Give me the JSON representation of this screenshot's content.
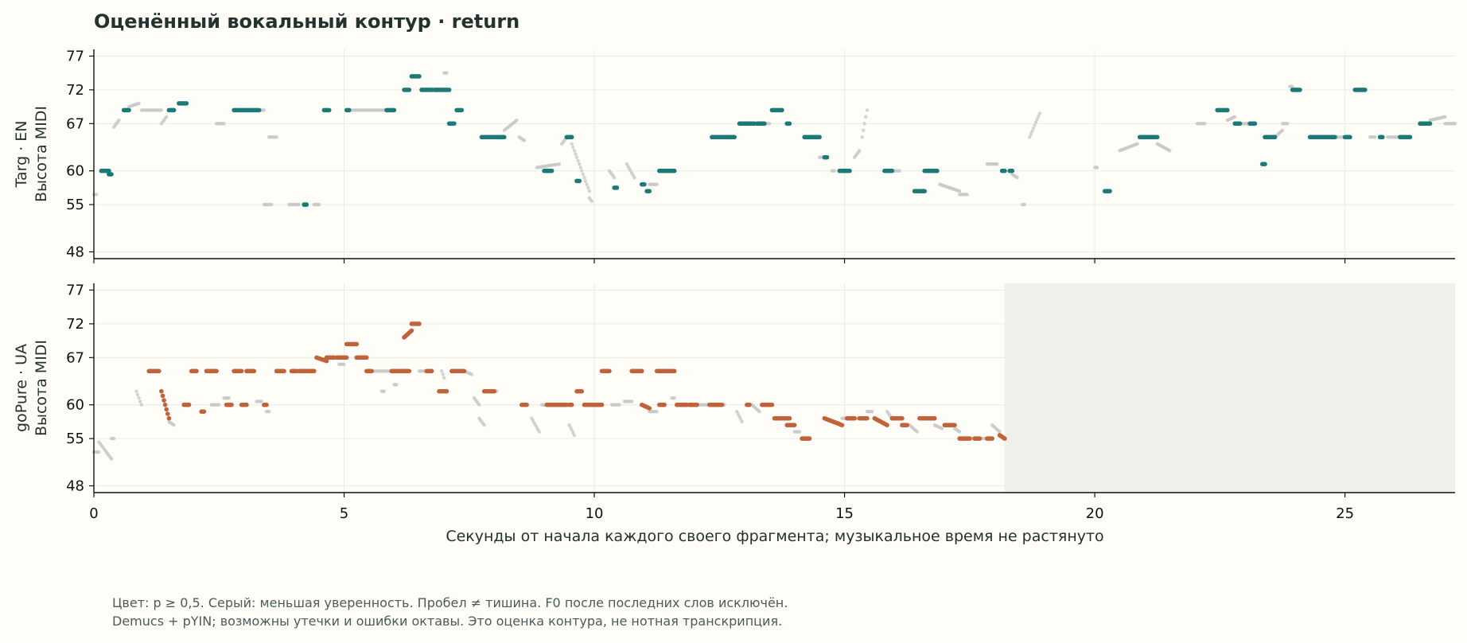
{
  "chart_data": {
    "type": "scatter",
    "title": "Оценённый вокальный контур · return",
    "xlabel": "Секунды от начала каждого своего фрагмента; музыкальное время не растянуто",
    "xlim": [
      0,
      27.2
    ],
    "xticks": [
      0,
      5,
      10,
      15,
      20,
      25
    ],
    "yticks": [
      48,
      55,
      60,
      67,
      72,
      77
    ],
    "footnotes": [
      "Цвет: p ≥ 0,5. Серый: меньшая уверенность. Пробел ≠ тишина. F0 после последних слов исключён.",
      "Demucs + pYIN; возможны утечки и ошибки октавы. Это оценка контура, не нотная транскрипция."
    ],
    "grid": true,
    "colors": {
      "confident_top": "#1b7a78",
      "confident_bottom": "#c0623a",
      "low_confidence": "#c8c8c8",
      "excluded_region": "#efefeb"
    },
    "panels": [
      {
        "name": "Targ · EN",
        "ylabel": "Высота MIDI",
        "ylim": [
          47,
          78
        ],
        "confident_segments": [
          [
            0.15,
            0.3,
            60,
            60
          ],
          [
            0.3,
            0.35,
            59.5,
            59.5
          ],
          [
            0.6,
            0.7,
            69,
            69
          ],
          [
            2.8,
            3.3,
            69,
            69
          ],
          [
            1.5,
            1.6,
            69,
            69
          ],
          [
            1.7,
            1.85,
            70,
            70
          ],
          [
            4.2,
            4.25,
            55,
            55
          ],
          [
            4.6,
            4.7,
            69,
            69
          ],
          [
            5.05,
            5.1,
            69,
            69
          ],
          [
            5.85,
            6.0,
            69,
            69
          ],
          [
            6.2,
            6.3,
            72,
            72
          ],
          [
            6.35,
            6.5,
            74,
            74
          ],
          [
            6.55,
            6.75,
            72,
            72
          ],
          [
            6.8,
            7.1,
            72,
            72
          ],
          [
            7.1,
            7.2,
            67,
            67
          ],
          [
            7.25,
            7.35,
            69,
            69
          ],
          [
            7.75,
            8.1,
            65,
            65
          ],
          [
            8.1,
            8.2,
            65,
            65
          ],
          [
            9.0,
            9.15,
            60,
            60
          ],
          [
            9.45,
            9.55,
            65,
            65
          ],
          [
            9.65,
            9.7,
            58.5,
            58.5
          ],
          [
            10.4,
            10.45,
            57.5,
            57.5
          ],
          [
            10.95,
            11.0,
            58,
            58
          ],
          [
            11.05,
            11.1,
            57,
            57
          ],
          [
            11.3,
            11.6,
            60,
            60
          ],
          [
            12.35,
            12.8,
            65,
            65
          ],
          [
            12.9,
            13.2,
            67,
            67
          ],
          [
            13.25,
            13.4,
            67,
            67
          ],
          [
            13.55,
            13.75,
            69,
            69
          ],
          [
            13.85,
            13.9,
            67,
            67
          ],
          [
            14.2,
            14.5,
            65,
            65
          ],
          [
            14.6,
            14.65,
            62,
            62
          ],
          [
            14.9,
            15.1,
            60,
            60
          ],
          [
            15.8,
            15.95,
            60,
            60
          ],
          [
            16.4,
            16.6,
            57,
            57
          ],
          [
            16.6,
            16.85,
            60,
            60
          ],
          [
            18.15,
            18.2,
            60,
            60
          ],
          [
            18.3,
            18.35,
            60,
            60
          ],
          [
            20.2,
            20.3,
            57,
            57
          ],
          [
            20.9,
            21.25,
            65,
            65
          ],
          [
            22.45,
            22.65,
            69,
            69
          ],
          [
            22.8,
            22.9,
            67,
            67
          ],
          [
            23.1,
            23.2,
            67,
            67
          ],
          [
            23.4,
            23.6,
            65,
            65
          ],
          [
            23.35,
            23.4,
            61,
            61
          ],
          [
            23.95,
            24.1,
            72,
            72
          ],
          [
            24.3,
            24.8,
            65,
            65
          ],
          [
            25.0,
            25.1,
            65,
            65
          ],
          [
            25.2,
            25.4,
            72,
            72
          ],
          [
            25.7,
            25.75,
            65,
            65
          ],
          [
            26.1,
            26.3,
            65,
            65
          ],
          [
            26.5,
            26.7,
            67,
            67
          ]
        ],
        "low_confidence_segments": [
          [
            0.0,
            0.05,
            56.5,
            56.5
          ],
          [
            0.4,
            0.5,
            66.5,
            67.5
          ],
          [
            0.7,
            0.9,
            69.5,
            70
          ],
          [
            0.95,
            1.35,
            69,
            69
          ],
          [
            1.35,
            1.45,
            67,
            68
          ],
          [
            2.45,
            2.6,
            67,
            67
          ],
          [
            3.3,
            3.4,
            69,
            69
          ],
          [
            3.5,
            3.65,
            65,
            65
          ],
          [
            3.4,
            3.55,
            55,
            55
          ],
          [
            3.9,
            4.1,
            55,
            55
          ],
          [
            4.4,
            4.5,
            55,
            55
          ],
          [
            5.15,
            5.85,
            69,
            69
          ],
          [
            7.0,
            7.05,
            74.5,
            74.5
          ],
          [
            8.2,
            8.45,
            66,
            67.5
          ],
          [
            8.5,
            8.6,
            65,
            64.5
          ],
          [
            8.85,
            9.3,
            60.5,
            61
          ],
          [
            9.35,
            9.45,
            64,
            65
          ],
          [
            9.55,
            9.9,
            64,
            57
          ],
          [
            9.9,
            9.95,
            56,
            55.5
          ],
          [
            10.3,
            10.4,
            60,
            59
          ],
          [
            10.65,
            10.8,
            61,
            59
          ],
          [
            11.1,
            11.25,
            58,
            58
          ],
          [
            13.45,
            13.5,
            67,
            67
          ],
          [
            14.5,
            14.6,
            62,
            62
          ],
          [
            14.75,
            14.8,
            60,
            60
          ],
          [
            15.2,
            15.3,
            62,
            63
          ],
          [
            15.35,
            15.45,
            65,
            69
          ],
          [
            15.95,
            16.1,
            60,
            60
          ],
          [
            16.9,
            17.3,
            58,
            57
          ],
          [
            17.3,
            17.45,
            56.5,
            56.5
          ],
          [
            17.85,
            18.05,
            61,
            61
          ],
          [
            18.35,
            18.45,
            59.5,
            59
          ],
          [
            18.55,
            18.6,
            55,
            55
          ],
          [
            18.7,
            18.9,
            65,
            68.5
          ],
          [
            20.0,
            20.05,
            60.5,
            60.5
          ],
          [
            20.5,
            20.85,
            63,
            64
          ],
          [
            21.25,
            21.5,
            64,
            63
          ],
          [
            22.05,
            22.2,
            67,
            67
          ],
          [
            22.65,
            22.8,
            67.5,
            68
          ],
          [
            22.9,
            23.05,
            67,
            67
          ],
          [
            23.6,
            23.75,
            65,
            66
          ],
          [
            23.75,
            23.85,
            67,
            67
          ],
          [
            23.9,
            23.95,
            72.5,
            72.5
          ],
          [
            24.8,
            25.0,
            65,
            65
          ],
          [
            25.5,
            25.6,
            65,
            65
          ],
          [
            25.85,
            26.05,
            65,
            65
          ],
          [
            26.7,
            27.0,
            67.5,
            68
          ],
          [
            27.0,
            27.2,
            67,
            67
          ]
        ]
      },
      {
        "name": "goPure · UA",
        "ylabel": "Высота MIDI",
        "ylim": [
          47,
          78
        ],
        "excluded_from_x": 18.2,
        "confident_segments": [
          [
            1.1,
            1.3,
            65,
            65
          ],
          [
            1.35,
            1.5,
            62,
            58
          ],
          [
            1.8,
            1.9,
            60,
            60
          ],
          [
            1.95,
            2.05,
            65,
            65
          ],
          [
            2.15,
            2.2,
            59,
            59
          ],
          [
            2.25,
            2.45,
            65,
            65
          ],
          [
            2.65,
            2.75,
            60,
            60
          ],
          [
            2.8,
            2.95,
            65,
            65
          ],
          [
            2.95,
            3.05,
            60,
            60
          ],
          [
            3.05,
            3.2,
            65,
            65
          ],
          [
            3.4,
            3.45,
            60,
            60
          ],
          [
            3.65,
            3.8,
            65,
            65
          ],
          [
            3.95,
            4.05,
            65,
            65
          ],
          [
            4.1,
            4.4,
            65,
            65
          ],
          [
            4.45,
            4.65,
            67,
            66.5
          ],
          [
            4.65,
            4.8,
            67,
            67
          ],
          [
            4.85,
            5.05,
            67,
            67
          ],
          [
            5.05,
            5.25,
            69,
            69
          ],
          [
            5.25,
            5.35,
            67,
            67
          ],
          [
            5.35,
            5.45,
            67,
            67
          ],
          [
            5.45,
            5.55,
            65,
            65
          ],
          [
            5.95,
            6.3,
            65,
            65
          ],
          [
            6.2,
            6.35,
            70,
            71
          ],
          [
            6.35,
            6.5,
            72,
            72
          ],
          [
            6.65,
            6.75,
            65,
            65
          ],
          [
            6.9,
            7.05,
            62,
            62
          ],
          [
            7.15,
            7.4,
            65,
            65
          ],
          [
            7.8,
            8.0,
            62,
            62
          ],
          [
            8.55,
            8.65,
            60,
            60
          ],
          [
            9.05,
            9.45,
            60,
            60
          ],
          [
            9.5,
            9.55,
            60,
            60
          ],
          [
            9.65,
            9.75,
            62,
            62
          ],
          [
            9.8,
            10.15,
            60,
            60
          ],
          [
            10.15,
            10.3,
            65,
            65
          ],
          [
            10.75,
            10.95,
            65,
            65
          ],
          [
            10.95,
            11.1,
            60,
            59.5
          ],
          [
            11.3,
            11.4,
            60,
            60
          ],
          [
            11.25,
            11.4,
            65,
            65
          ],
          [
            11.4,
            11.6,
            65,
            65
          ],
          [
            11.65,
            11.85,
            60,
            60
          ],
          [
            11.9,
            12.05,
            60,
            60
          ],
          [
            12.3,
            12.55,
            60,
            60
          ],
          [
            13.05,
            13.1,
            60,
            60
          ],
          [
            13.35,
            13.55,
            60,
            60
          ],
          [
            13.6,
            13.9,
            58,
            58
          ],
          [
            13.85,
            14.0,
            57,
            57
          ],
          [
            14.15,
            14.3,
            55,
            55
          ],
          [
            14.6,
            14.95,
            58,
            57
          ],
          [
            15.05,
            15.2,
            58,
            58
          ],
          [
            15.3,
            15.45,
            58,
            58
          ],
          [
            15.6,
            15.85,
            58,
            57
          ],
          [
            15.95,
            16.15,
            58,
            58
          ],
          [
            16.15,
            16.25,
            57,
            57
          ],
          [
            16.5,
            16.8,
            58,
            58
          ],
          [
            17.0,
            17.2,
            57,
            57
          ],
          [
            17.3,
            17.5,
            55,
            55
          ],
          [
            17.6,
            17.7,
            55,
            55
          ],
          [
            17.85,
            17.95,
            55,
            55
          ],
          [
            18.1,
            18.2,
            55.5,
            55
          ]
        ],
        "low_confidence_segments": [
          [
            0.0,
            0.1,
            53,
            53
          ],
          [
            0.1,
            0.35,
            54.5,
            52
          ],
          [
            0.35,
            0.4,
            55,
            55
          ],
          [
            0.85,
            0.95,
            62,
            60
          ],
          [
            1.5,
            1.6,
            57.5,
            57
          ],
          [
            2.35,
            2.5,
            60,
            60
          ],
          [
            2.6,
            2.7,
            61,
            61
          ],
          [
            3.25,
            3.35,
            60.5,
            60.5
          ],
          [
            3.45,
            3.5,
            59,
            59
          ],
          [
            4.9,
            5.0,
            66,
            66
          ],
          [
            5.55,
            5.95,
            65,
            65
          ],
          [
            5.75,
            5.8,
            62,
            62
          ],
          [
            6.0,
            6.05,
            63,
            63
          ],
          [
            6.5,
            6.7,
            65,
            65
          ],
          [
            6.95,
            7.0,
            65,
            64
          ],
          [
            7.4,
            7.55,
            65,
            64.5
          ],
          [
            7.6,
            7.7,
            61,
            60
          ],
          [
            7.7,
            7.8,
            58,
            57
          ],
          [
            8.0,
            8.05,
            62,
            62
          ],
          [
            8.75,
            8.9,
            58,
            56
          ],
          [
            8.95,
            9.05,
            60,
            60
          ],
          [
            9.5,
            9.6,
            57,
            55.5
          ],
          [
            10.35,
            10.5,
            60,
            60
          ],
          [
            10.6,
            10.75,
            60.5,
            60.5
          ],
          [
            11.1,
            11.25,
            59,
            59
          ],
          [
            11.55,
            11.6,
            61,
            61
          ],
          [
            12.05,
            12.3,
            60,
            60
          ],
          [
            12.55,
            12.6,
            60,
            60
          ],
          [
            12.85,
            12.95,
            59,
            57.5
          ],
          [
            13.15,
            13.3,
            60,
            59
          ],
          [
            14.0,
            14.1,
            56,
            56
          ],
          [
            14.95,
            15.05,
            58,
            58
          ],
          [
            15.25,
            15.3,
            58,
            58
          ],
          [
            15.45,
            15.55,
            59,
            59
          ],
          [
            15.85,
            15.95,
            59,
            58
          ],
          [
            16.3,
            16.45,
            57,
            56
          ],
          [
            16.8,
            16.95,
            57,
            56.5
          ],
          [
            17.2,
            17.3,
            56.5,
            56
          ],
          [
            17.5,
            17.6,
            55,
            55
          ],
          [
            17.7,
            17.85,
            55,
            55
          ],
          [
            17.95,
            18.1,
            57,
            56
          ]
        ]
      }
    ]
  }
}
